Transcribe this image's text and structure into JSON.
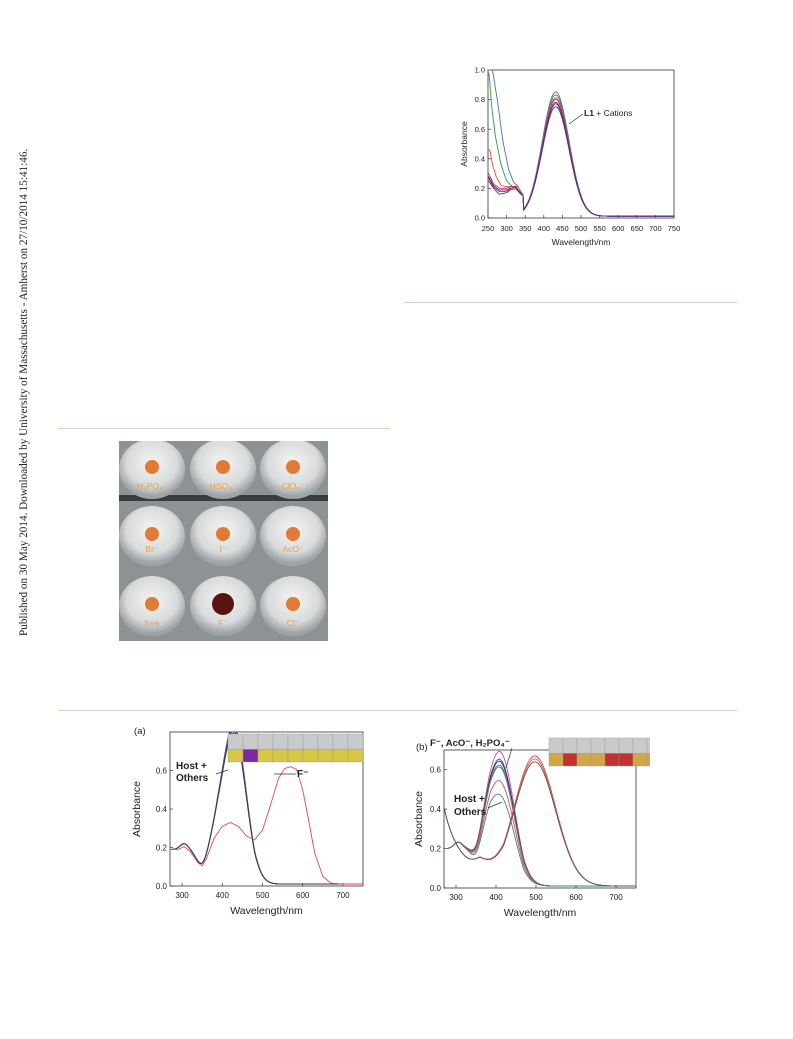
{
  "side_note": "Published on 30 May 2014. Downloaded by University of Massachusetts - Amherst on 27/10/2014 15:41:46.",
  "photo": {
    "wells": [
      {
        "label": "H2PO4-",
        "tint": "#e07a35"
      },
      {
        "label": "HSO4-",
        "tint": "#e07a35"
      },
      {
        "label": "ClO4-",
        "tint": "#e07a35"
      },
      {
        "label": "Br-",
        "tint": "#e07a35"
      },
      {
        "label": "I-",
        "tint": "#e07a35"
      },
      {
        "label": "AcO-",
        "tint": "#e07a35"
      },
      {
        "label": "free",
        "tint": "#e07a35"
      },
      {
        "label": "F-",
        "tint": "#5a1410"
      },
      {
        "label": "Cl-",
        "tint": "#e07a35"
      }
    ],
    "label_color": "#e8a13a"
  },
  "chart_data": [
    {
      "type": "line",
      "id": "top",
      "xlabel": "Wavelength/nm",
      "ylabel": "Absorbance",
      "xlim": [
        250,
        750
      ],
      "ylim": [
        0,
        1.0
      ],
      "xticks": [
        250,
        300,
        350,
        400,
        450,
        500,
        550,
        600,
        650,
        700,
        750
      ],
      "yticks": [
        0.0,
        0.2,
        0.4,
        0.6,
        0.8,
        1.0
      ],
      "annotation": {
        "bold": "L1",
        "text": " + Cations"
      },
      "series": [
        {
          "color": "#4a6fb0",
          "peak": 0.84,
          "uv": [
            [
              262,
              1.0
            ],
            [
              275,
              0.8
            ],
            [
              290,
              0.52
            ],
            [
              305,
              0.33
            ],
            [
              318,
              0.24
            ],
            [
              330,
              0.2
            ],
            [
              345,
              0.11
            ]
          ]
        },
        {
          "color": "#2e9a3c",
          "peak": 0.82,
          "uv": [
            [
              253,
              0.98
            ],
            [
              260,
              0.75
            ],
            [
              270,
              0.55
            ],
            [
              285,
              0.36
            ],
            [
              300,
              0.25
            ],
            [
              315,
              0.21
            ],
            [
              330,
              0.2
            ],
            [
              345,
              0.11
            ]
          ]
        },
        {
          "color": "#e0502a",
          "peak": 0.8,
          "uv": [
            [
              255,
              0.46
            ],
            [
              262,
              0.36
            ],
            [
              272,
              0.28
            ],
            [
              285,
              0.22
            ],
            [
              300,
              0.21
            ],
            [
              315,
              0.21
            ],
            [
              330,
              0.2
            ],
            [
              345,
              0.11
            ]
          ]
        },
        {
          "color": "#d03080",
          "peak": 0.79,
          "uv": [
            [
              252,
              0.3
            ],
            [
              265,
              0.23
            ],
            [
              282,
              0.2
            ],
            [
              300,
              0.2
            ],
            [
              312,
              0.21
            ],
            [
              325,
              0.2
            ],
            [
              345,
              0.11
            ]
          ]
        },
        {
          "color": "#7a3a9a",
          "peak": 0.77,
          "uv": [
            [
              252,
              0.28
            ],
            [
              265,
              0.22
            ],
            [
              280,
              0.19
            ],
            [
              300,
              0.19
            ],
            [
              312,
              0.2
            ],
            [
              325,
              0.2
            ],
            [
              345,
              0.11
            ]
          ]
        },
        {
          "color": "#3a3a5a",
          "peak": 0.76,
          "uv": [
            [
              252,
              0.27
            ],
            [
              265,
              0.21
            ],
            [
              280,
              0.18
            ],
            [
              300,
              0.18
            ],
            [
              312,
              0.2
            ],
            [
              325,
              0.2
            ],
            [
              345,
              0.11
            ]
          ]
        },
        {
          "color": "#5a2a8a",
          "peak": 0.74,
          "uv": [
            [
              252,
              0.25
            ],
            [
              265,
              0.2
            ],
            [
              280,
              0.16
            ],
            [
              300,
              0.17
            ],
            [
              312,
              0.19
            ],
            [
              325,
              0.19
            ],
            [
              345,
              0.11
            ]
          ]
        }
      ]
    },
    {
      "type": "line",
      "id": "a",
      "panel": "(a)",
      "xlabel": "Wavelength/nm",
      "ylabel": "Absorbance",
      "xlim": [
        270,
        750
      ],
      "ylim": [
        0,
        0.8
      ],
      "xticks": [
        300,
        400,
        500,
        600,
        700
      ],
      "yticks": [
        0.0,
        0.2,
        0.4,
        0.6
      ],
      "labels": [
        "Host +",
        "Others",
        "F⁻"
      ],
      "series": [
        {
          "name": "Others",
          "color": "#333344",
          "peak": 0.72
        },
        {
          "name": "Others",
          "color": "#4a4aa0",
          "peak": 0.71
        },
        {
          "name": "Others",
          "color": "#6a6a6a",
          "peak": 0.7
        },
        {
          "name": "Others",
          "color": "#2e6a9a",
          "peak": 0.695
        },
        {
          "name": "Others",
          "color": "#7a3a7a",
          "peak": 0.69
        },
        {
          "name": "Others",
          "color": "#333366",
          "peak": 0.68
        },
        {
          "name": "F-",
          "color": "#e04a4a",
          "points": [
            [
              270,
              0.19
            ],
            [
              290,
              0.19
            ],
            [
              305,
              0.205
            ],
            [
              320,
              0.18
            ],
            [
              340,
              0.12
            ],
            [
              350,
              0.105
            ],
            [
              360,
              0.14
            ],
            [
              380,
              0.25
            ],
            [
              400,
              0.31
            ],
            [
              420,
              0.33
            ],
            [
              440,
              0.31
            ],
            [
              460,
              0.26
            ],
            [
              480,
              0.24
            ],
            [
              500,
              0.29
            ],
            [
              520,
              0.42
            ],
            [
              540,
              0.56
            ],
            [
              555,
              0.61
            ],
            [
              570,
              0.62
            ],
            [
              585,
              0.605
            ],
            [
              600,
              0.5
            ],
            [
              615,
              0.34
            ],
            [
              630,
              0.17
            ],
            [
              650,
              0.05
            ],
            [
              670,
              0.015
            ],
            [
              700,
              0.01
            ],
            [
              750,
              0.01
            ]
          ]
        }
      ],
      "inset": [
        {
          "top": "#c9cacb",
          "bottom": "#d4c846"
        },
        {
          "top": "#c9cacb",
          "bottom": "#7a2aa0"
        },
        {
          "top": "#c9cacb",
          "bottom": "#d4c846"
        },
        {
          "top": "#c9cacb",
          "bottom": "#d4c846"
        },
        {
          "top": "#c9cacb",
          "bottom": "#d4c846"
        },
        {
          "top": "#c9cacb",
          "bottom": "#d4c846"
        },
        {
          "top": "#c9cacb",
          "bottom": "#d4c846"
        },
        {
          "top": "#c9cacb",
          "bottom": "#d4c846"
        },
        {
          "top": "#c9cacb",
          "bottom": "#d4c846"
        }
      ]
    },
    {
      "type": "line",
      "id": "b",
      "panel": "(b)",
      "xlabel": "Wavelength/nm",
      "ylabel": "Absorbance",
      "xlim": [
        270,
        750
      ],
      "ylim": [
        0,
        0.7
      ],
      "xticks": [
        300,
        400,
        500,
        600,
        700
      ],
      "yticks": [
        0.0,
        0.2,
        0.4,
        0.6
      ],
      "labels": [
        "F⁻, AcO⁻, H₂PO₄⁻",
        "Host +",
        "Others"
      ],
      "series": [
        {
          "name": "Others",
          "color": "#c050a0",
          "p410": 0.55
        },
        {
          "name": "Others",
          "color": "#4a4aa0",
          "p410": 0.51
        },
        {
          "name": "Others",
          "color": "#333344",
          "p410": 0.5
        },
        {
          "name": "Others",
          "color": "#2e6a9a",
          "p410": 0.48
        },
        {
          "name": "Others",
          "color": "#7a7a7a",
          "p410": 0.47
        },
        {
          "name": "Others",
          "color": "#e04a4a",
          "p410": 0.4
        },
        {
          "name": "Others",
          "color": "#3a8a5a",
          "p410": 0.33
        },
        {
          "name": "F-, AcO-, H2PO4-",
          "color": "#e04a4a",
          "p500": 0.66
        },
        {
          "name": "F-, AcO-, H2PO4-",
          "color": "#d06a30",
          "p500": 0.645
        },
        {
          "name": "F-, AcO-, H2PO4-",
          "color": "#555566",
          "p500": 0.63
        }
      ],
      "inset": [
        {
          "top": "#c9cacb",
          "bottom": "#d0a848"
        },
        {
          "top": "#c9cacb",
          "bottom": "#c23030"
        },
        {
          "top": "#c9cacb",
          "bottom": "#d0a848"
        },
        {
          "top": "#c9cacb",
          "bottom": "#d0a848"
        },
        {
          "top": "#c9cacb",
          "bottom": "#c23030"
        },
        {
          "top": "#c9cacb",
          "bottom": "#c23030"
        },
        {
          "top": "#c9cacb",
          "bottom": "#d0a848"
        },
        {
          "top": "#c9cacb",
          "bottom": "#d0a848"
        }
      ]
    }
  ]
}
